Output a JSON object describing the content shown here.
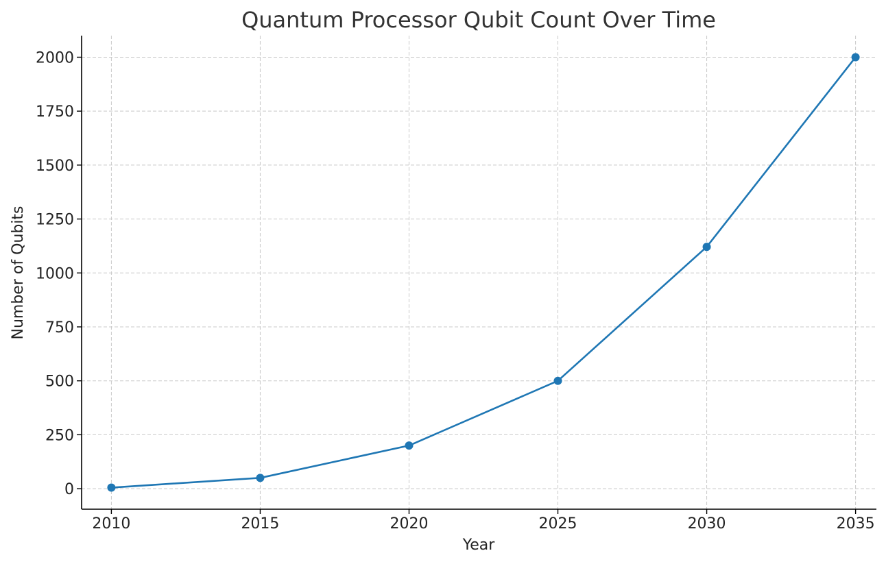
{
  "chart_data": {
    "type": "line",
    "title": "Quantum Processor Qubit Count Over Time",
    "xlabel": "Year",
    "ylabel": "Number of Qubits",
    "x": [
      2010,
      2015,
      2020,
      2025,
      2030,
      2035
    ],
    "series": [
      {
        "values": [
          5,
          50,
          200,
          500,
          1121,
          2000
        ],
        "color": "#1f77b4"
      }
    ],
    "xticks": [
      2010,
      2015,
      2020,
      2025,
      2030,
      2035
    ],
    "yticks": [
      0,
      250,
      500,
      750,
      1000,
      1250,
      1500,
      1750,
      2000
    ],
    "xlim": [
      2009.0,
      2035.7
    ],
    "ylim": [
      -95,
      2100
    ],
    "grid": true,
    "legend": "none",
    "marker": "circle"
  }
}
